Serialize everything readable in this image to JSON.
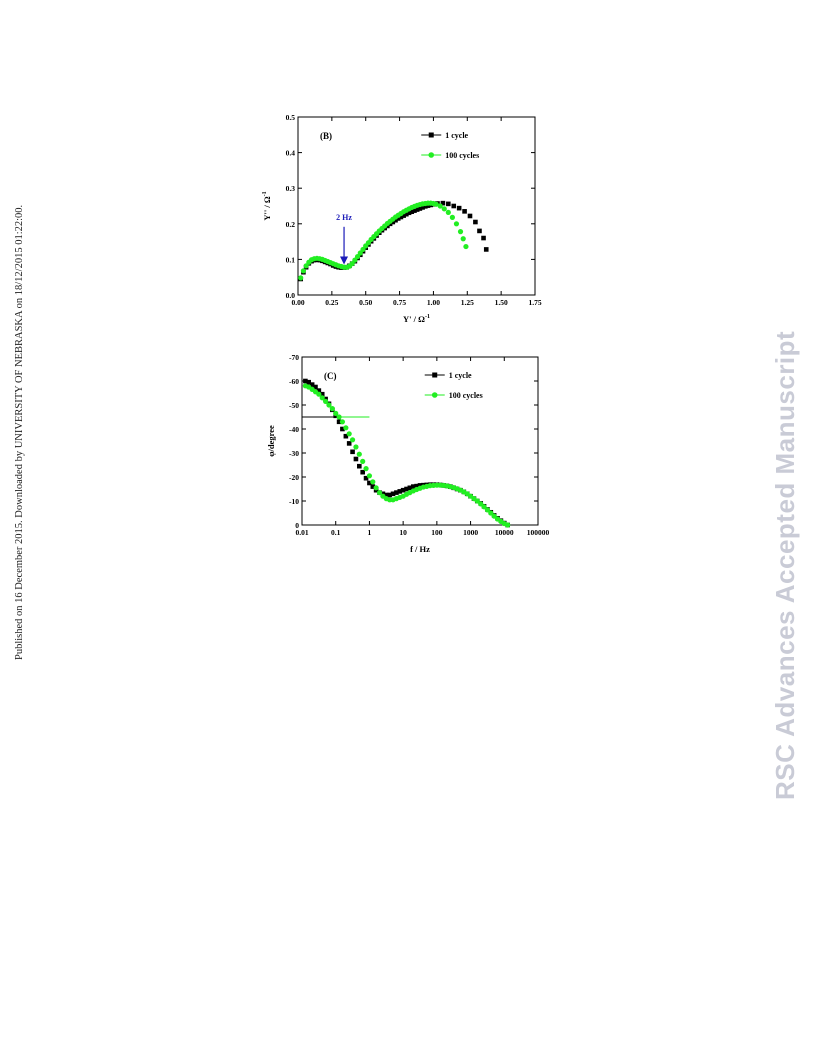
{
  "side_note": "Published on 16 December 2015. Downloaded by UNIVERSITY OF NEBRASKA on 18/12/2015 01:22:00.",
  "watermark": "RSC Advances Accepted Manuscript",
  "chart_data": [
    {
      "type": "scatter",
      "panel_label": "(B)",
      "xlabel": "Y' / Ω",
      "xlabel_sup": "-1",
      "ylabel": "Y'' / Ω",
      "ylabel_sup": "-1",
      "xlim": [
        0,
        1.75
      ],
      "ylim": [
        0,
        0.5
      ],
      "xticks": [
        0.0,
        0.25,
        0.5,
        0.75,
        1.0,
        1.25,
        1.5,
        1.75
      ],
      "xtick_labels": [
        "0.00",
        "0.25",
        "0.50",
        "0.75",
        "1.00",
        "1.25",
        "1.50",
        "1.75"
      ],
      "yticks": [
        0.0,
        0.1,
        0.2,
        0.3,
        0.4,
        0.5
      ],
      "ytick_labels": [
        "0.0",
        "0.1",
        "0.2",
        "0.3",
        "0.4",
        "0.5"
      ],
      "annotation": {
        "text": "2 Hz",
        "x": 0.34,
        "y": 0.08,
        "text_y": 0.2,
        "color": "#1a1ab8"
      },
      "legend_position": "top-right",
      "series": [
        {
          "name": "1 cycle",
          "marker": "square",
          "color": "#000000",
          "x": [
            0.02,
            0.04,
            0.06,
            0.08,
            0.1,
            0.12,
            0.14,
            0.16,
            0.18,
            0.2,
            0.22,
            0.24,
            0.26,
            0.28,
            0.3,
            0.32,
            0.34,
            0.36,
            0.38,
            0.4,
            0.42,
            0.44,
            0.46,
            0.48,
            0.5,
            0.52,
            0.54,
            0.56,
            0.58,
            0.6,
            0.62,
            0.64,
            0.66,
            0.68,
            0.7,
            0.72,
            0.74,
            0.76,
            0.78,
            0.8,
            0.82,
            0.84,
            0.86,
            0.88,
            0.9,
            0.92,
            0.94,
            0.96,
            0.98,
            1.0,
            1.03,
            1.07,
            1.11,
            1.15,
            1.19,
            1.23,
            1.27,
            1.31,
            1.34,
            1.37,
            1.39
          ],
          "y": [
            0.045,
            0.064,
            0.078,
            0.089,
            0.095,
            0.098,
            0.099,
            0.098,
            0.096,
            0.093,
            0.09,
            0.087,
            0.083,
            0.08,
            0.078,
            0.077,
            0.077,
            0.078,
            0.082,
            0.088,
            0.095,
            0.104,
            0.113,
            0.123,
            0.133,
            0.142,
            0.151,
            0.159,
            0.167,
            0.175,
            0.182,
            0.188,
            0.194,
            0.2,
            0.205,
            0.21,
            0.215,
            0.219,
            0.223,
            0.227,
            0.231,
            0.234,
            0.237,
            0.24,
            0.243,
            0.246,
            0.249,
            0.251,
            0.253,
            0.255,
            0.257,
            0.258,
            0.256,
            0.25,
            0.244,
            0.235,
            0.222,
            0.205,
            0.18,
            0.16,
            0.128
          ]
        },
        {
          "name": "100 cycles",
          "marker": "circle",
          "color": "#22ee22",
          "x": [
            0.02,
            0.04,
            0.06,
            0.08,
            0.1,
            0.12,
            0.14,
            0.16,
            0.18,
            0.2,
            0.22,
            0.24,
            0.26,
            0.28,
            0.3,
            0.32,
            0.34,
            0.36,
            0.38,
            0.4,
            0.42,
            0.44,
            0.46,
            0.48,
            0.5,
            0.52,
            0.54,
            0.56,
            0.58,
            0.6,
            0.62,
            0.64,
            0.66,
            0.68,
            0.7,
            0.72,
            0.74,
            0.76,
            0.78,
            0.8,
            0.82,
            0.84,
            0.86,
            0.88,
            0.9,
            0.92,
            0.94,
            0.96,
            0.98,
            1.0,
            1.02,
            1.05,
            1.08,
            1.11,
            1.14,
            1.17,
            1.2,
            1.22,
            1.24
          ],
          "y": [
            0.048,
            0.068,
            0.082,
            0.092,
            0.099,
            0.102,
            0.103,
            0.102,
            0.1,
            0.097,
            0.094,
            0.091,
            0.088,
            0.085,
            0.082,
            0.08,
            0.078,
            0.078,
            0.081,
            0.088,
            0.098,
            0.108,
            0.118,
            0.128,
            0.138,
            0.147,
            0.156,
            0.164,
            0.172,
            0.18,
            0.187,
            0.194,
            0.201,
            0.207,
            0.213,
            0.219,
            0.224,
            0.229,
            0.234,
            0.238,
            0.242,
            0.246,
            0.249,
            0.252,
            0.254,
            0.256,
            0.257,
            0.258,
            0.258,
            0.257,
            0.255,
            0.25,
            0.242,
            0.232,
            0.218,
            0.2,
            0.178,
            0.158,
            0.136
          ]
        }
      ]
    },
    {
      "type": "scatter",
      "panel_label": "(C)",
      "xlabel": "f / Hz",
      "ylabel": "φ/degree",
      "xscale": "log",
      "xlim": [
        0.01,
        100000
      ],
      "ylim": [
        0,
        -70
      ],
      "xticks": [
        0.01,
        0.1,
        1,
        10,
        100,
        1000,
        10000,
        100000
      ],
      "xtick_labels": [
        "0.01",
        "0.1",
        "1",
        "10",
        "100",
        "1000",
        "10000",
        "100000"
      ],
      "yticks": [
        0,
        -10,
        -20,
        -30,
        -40,
        -50,
        -60,
        -70
      ],
      "ytick_labels": [
        "0",
        "-10",
        "-20",
        "-30",
        "-40",
        "-50",
        "-60",
        "-70"
      ],
      "reference_lines": [
        {
          "y": -45,
          "x_start": 0.01,
          "x_end": 0.12,
          "color": "#000000"
        },
        {
          "y": -45,
          "x_start": 0.12,
          "x_end": 1.0,
          "color": "#22ee22"
        }
      ],
      "legend_position": "top-right",
      "series": [
        {
          "name": "1 cycle",
          "marker": "square",
          "color": "#000000",
          "x": [
            0.0126,
            0.0158,
            0.02,
            0.0251,
            0.0316,
            0.0398,
            0.0501,
            0.0631,
            0.0794,
            0.1,
            0.126,
            0.158,
            0.2,
            0.251,
            0.316,
            0.398,
            0.501,
            0.631,
            0.794,
            1,
            1.26,
            1.58,
            2,
            2.51,
            3.16,
            3.98,
            5.01,
            6.31,
            7.94,
            10,
            12.6,
            15.8,
            20,
            25.1,
            31.6,
            39.8,
            50.1,
            63.1,
            79.4,
            100,
            126,
            158,
            200,
            251,
            316,
            398,
            501,
            631,
            794,
            1000,
            1260,
            1580,
            2000,
            2510,
            3160,
            3980,
            5010,
            6310,
            7940,
            10000,
            12600
          ],
          "y": [
            -60,
            -59.5,
            -58.5,
            -57.5,
            -56,
            -54.5,
            -52.5,
            -50.5,
            -48,
            -45.5,
            -43,
            -40,
            -37,
            -34,
            -30.5,
            -27.5,
            -24.5,
            -22,
            -19.5,
            -17.5,
            -16,
            -14.5,
            -13.5,
            -13,
            -12.5,
            -12.5,
            -13,
            -13.5,
            -14,
            -14.5,
            -15,
            -15.5,
            -16,
            -16.2,
            -16.5,
            -16.6,
            -16.7,
            -16.8,
            -16.8,
            -16.8,
            -16.7,
            -16.5,
            -16.3,
            -16,
            -15.5,
            -15,
            -14.5,
            -13.8,
            -13,
            -12,
            -11,
            -10,
            -9,
            -7.8,
            -6.5,
            -5.3,
            -4,
            -2.8,
            -1.8,
            -0.8,
            0
          ]
        },
        {
          "name": "100 cycles",
          "marker": "circle",
          "color": "#22ee22",
          "x": [
            0.0126,
            0.0158,
            0.02,
            0.0251,
            0.0316,
            0.0398,
            0.0501,
            0.0631,
            0.0794,
            0.1,
            0.126,
            0.158,
            0.2,
            0.251,
            0.316,
            0.398,
            0.501,
            0.631,
            0.794,
            1,
            1.26,
            1.58,
            2,
            2.51,
            3.16,
            3.98,
            5.01,
            6.31,
            7.94,
            10,
            12.6,
            15.8,
            20,
            25.1,
            31.6,
            39.8,
            50.1,
            63.1,
            79.4,
            100,
            126,
            158,
            200,
            251,
            316,
            398,
            501,
            631,
            794,
            1000,
            1260,
            1580,
            2000,
            2510,
            3160,
            3980,
            5010,
            6310,
            7940,
            10000,
            12600
          ],
          "y": [
            -58,
            -57.5,
            -56.5,
            -55.5,
            -54.5,
            -53,
            -51.5,
            -50,
            -48.5,
            -46.5,
            -45,
            -43,
            -40.5,
            -38,
            -35.5,
            -32.5,
            -29.5,
            -26.5,
            -23.5,
            -20.5,
            -18,
            -15.5,
            -13.5,
            -12,
            -11,
            -10.5,
            -10.5,
            -11,
            -11.5,
            -12,
            -12.8,
            -13.5,
            -14.2,
            -14.8,
            -15.3,
            -15.8,
            -16.1,
            -16.4,
            -16.5,
            -16.6,
            -16.6,
            -16.5,
            -16.3,
            -16,
            -15.6,
            -15.1,
            -14.5,
            -13.8,
            -13,
            -12,
            -11,
            -10,
            -8.8,
            -7.6,
            -6.3,
            -5,
            -3.7,
            -2.5,
            -1.5,
            -0.6,
            0
          ]
        }
      ]
    }
  ]
}
